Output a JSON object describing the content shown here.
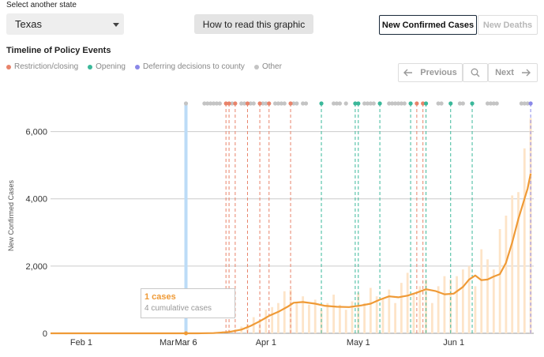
{
  "controls": {
    "state_label": "Select another state",
    "state_value": "Texas",
    "how_to_read": "How to read this graphic",
    "metric_cases": "New Confirmed Cases",
    "metric_deaths": "New Deaths"
  },
  "timeline": {
    "title": "Timeline of Policy Events",
    "legend": [
      {
        "label": "Restriction/closing",
        "color": "#e8836a"
      },
      {
        "label": "Opening",
        "color": "#3bb89a"
      },
      {
        "label": "Deferring decisions to county",
        "color": "#8a88e8"
      },
      {
        "label": "Other",
        "color": "#c4c4c4"
      }
    ],
    "previous_label": "Previous",
    "next_label": "Next"
  },
  "tooltip": {
    "cases": "1 cases",
    "cumulative": "4 cumulative cases"
  },
  "colors": {
    "line": "#ef9a36",
    "bar": "#fde4c8",
    "highlight": "#bcdcf7",
    "grid": "#cccccc"
  },
  "chart_data": {
    "type": "line",
    "ylabel": "New Confirmed Cases",
    "ylim": [
      0,
      7000
    ],
    "yticks": [
      0,
      2000,
      4000,
      6000
    ],
    "yticklabels": [
      "0",
      "2,000",
      "4,000",
      "6,000"
    ],
    "x_start": "2020-01-22",
    "x_end": "2020-06-27",
    "xticks": [
      {
        "date": "2020-02-01",
        "label": "Feb 1"
      },
      {
        "date": "2020-03-01",
        "label": "Mar 1"
      },
      {
        "date": "2020-04-01",
        "label": "Apr 1"
      },
      {
        "date": "2020-05-01",
        "label": "May 1"
      },
      {
        "date": "2020-06-01",
        "label": "Jun 1"
      }
    ],
    "highlight": {
      "date": "2020-03-06",
      "label": "Mar 6",
      "value": 1
    },
    "average_line": {
      "name": "7-day average",
      "points": [
        [
          "2020-01-22",
          0
        ],
        [
          "2020-03-10",
          0
        ],
        [
          "2020-03-15",
          8
        ],
        [
          "2020-03-20",
          40
        ],
        [
          "2020-03-24",
          110
        ],
        [
          "2020-03-27",
          220
        ],
        [
          "2020-03-30",
          360
        ],
        [
          "2020-04-02",
          520
        ],
        [
          "2020-04-05",
          640
        ],
        [
          "2020-04-08",
          790
        ],
        [
          "2020-04-10",
          910
        ],
        [
          "2020-04-13",
          930
        ],
        [
          "2020-04-17",
          880
        ],
        [
          "2020-04-20",
          820
        ],
        [
          "2020-04-24",
          790
        ],
        [
          "2020-04-28",
          780
        ],
        [
          "2020-05-02",
          830
        ],
        [
          "2020-05-05",
          880
        ],
        [
          "2020-05-08",
          1000
        ],
        [
          "2020-05-11",
          1100
        ],
        [
          "2020-05-14",
          1070
        ],
        [
          "2020-05-17",
          1120
        ],
        [
          "2020-05-20",
          1210
        ],
        [
          "2020-05-23",
          1310
        ],
        [
          "2020-05-26",
          1260
        ],
        [
          "2020-05-29",
          1160
        ],
        [
          "2020-06-01",
          1180
        ],
        [
          "2020-06-04",
          1380
        ],
        [
          "2020-06-06",
          1600
        ],
        [
          "2020-06-08",
          1720
        ],
        [
          "2020-06-10",
          1580
        ],
        [
          "2020-06-12",
          1600
        ],
        [
          "2020-06-14",
          1690
        ],
        [
          "2020-06-16",
          1760
        ],
        [
          "2020-06-18",
          2100
        ],
        [
          "2020-06-20",
          2700
        ],
        [
          "2020-06-22",
          3400
        ],
        [
          "2020-06-24",
          4000
        ],
        [
          "2020-06-25",
          4300
        ],
        [
          "2020-06-26",
          4750
        ]
      ]
    },
    "daily_bars": {
      "name": "Daily new cases",
      "points": [
        [
          "2020-03-12",
          10
        ],
        [
          "2020-03-14",
          20
        ],
        [
          "2020-03-16",
          30
        ],
        [
          "2020-03-18",
          60
        ],
        [
          "2020-03-20",
          110
        ],
        [
          "2020-03-22",
          120
        ],
        [
          "2020-03-24",
          200
        ],
        [
          "2020-03-26",
          280
        ],
        [
          "2020-03-28",
          480
        ],
        [
          "2020-03-30",
          400
        ],
        [
          "2020-04-01",
          700
        ],
        [
          "2020-04-03",
          780
        ],
        [
          "2020-04-05",
          900
        ],
        [
          "2020-04-07",
          1250
        ],
        [
          "2020-04-09",
          1300
        ],
        [
          "2020-04-11",
          900
        ],
        [
          "2020-04-13",
          1100
        ],
        [
          "2020-04-15",
          850
        ],
        [
          "2020-04-17",
          1000
        ],
        [
          "2020-04-19",
          700
        ],
        [
          "2020-04-21",
          900
        ],
        [
          "2020-04-23",
          1150
        ],
        [
          "2020-04-25",
          850
        ],
        [
          "2020-04-27",
          700
        ],
        [
          "2020-04-29",
          950
        ],
        [
          "2020-05-01",
          1200
        ],
        [
          "2020-05-03",
          900
        ],
        [
          "2020-05-05",
          1350
        ],
        [
          "2020-05-07",
          1100
        ],
        [
          "2020-05-09",
          1050
        ],
        [
          "2020-05-11",
          1300
        ],
        [
          "2020-05-13",
          900
        ],
        [
          "2020-05-15",
          1500
        ],
        [
          "2020-05-17",
          1800
        ],
        [
          "2020-05-19",
          1200
        ],
        [
          "2020-05-21",
          1400
        ],
        [
          "2020-05-23",
          1600
        ],
        [
          "2020-05-25",
          900
        ],
        [
          "2020-05-27",
          1400
        ],
        [
          "2020-05-29",
          1700
        ],
        [
          "2020-05-31",
          1600
        ],
        [
          "2020-06-02",
          1700
        ],
        [
          "2020-06-04",
          1900
        ],
        [
          "2020-06-06",
          2000
        ],
        [
          "2020-06-08",
          1400
        ],
        [
          "2020-06-10",
          2500
        ],
        [
          "2020-06-12",
          2200
        ],
        [
          "2020-06-14",
          1900
        ],
        [
          "2020-06-16",
          3100
        ],
        [
          "2020-06-18",
          3500
        ],
        [
          "2020-06-20",
          4100
        ],
        [
          "2020-06-22",
          4200
        ],
        [
          "2020-06-24",
          5500
        ],
        [
          "2020-06-26",
          6400
        ]
      ]
    },
    "events": [
      {
        "date": "2020-03-19",
        "kind": "restriction"
      },
      {
        "date": "2020-03-20",
        "kind": "restriction"
      },
      {
        "date": "2020-03-22",
        "kind": "restriction"
      },
      {
        "date": "2020-03-26",
        "kind": "restriction"
      },
      {
        "date": "2020-03-30",
        "kind": "restriction"
      },
      {
        "date": "2020-04-02",
        "kind": "restriction"
      },
      {
        "date": "2020-04-09",
        "kind": "restriction"
      },
      {
        "date": "2020-04-19",
        "kind": "opening"
      },
      {
        "date": "2020-04-30",
        "kind": "opening"
      },
      {
        "date": "2020-05-01",
        "kind": "opening"
      },
      {
        "date": "2020-05-08",
        "kind": "opening"
      },
      {
        "date": "2020-05-18",
        "kind": "opening"
      },
      {
        "date": "2020-05-20",
        "kind": "restriction"
      },
      {
        "date": "2020-05-22",
        "kind": "restriction"
      },
      {
        "date": "2020-05-23",
        "kind": "opening"
      },
      {
        "date": "2020-05-31",
        "kind": "opening"
      },
      {
        "date": "2020-06-07",
        "kind": "opening"
      },
      {
        "date": "2020-06-26",
        "kind": "deferring"
      }
    ],
    "other_events": [
      "2020-03-06",
      "2020-03-12",
      "2020-03-13",
      "2020-03-14",
      "2020-03-15",
      "2020-03-16",
      "2020-03-17",
      "2020-03-21",
      "2020-03-24",
      "2020-03-25",
      "2020-03-27",
      "2020-03-28",
      "2020-03-31",
      "2020-04-01",
      "2020-04-04",
      "2020-04-05",
      "2020-04-06",
      "2020-04-07",
      "2020-04-10",
      "2020-04-11",
      "2020-04-13",
      "2020-04-14",
      "2020-04-23",
      "2020-04-24",
      "2020-04-25",
      "2020-04-27",
      "2020-05-03",
      "2020-05-04",
      "2020-05-05",
      "2020-05-06",
      "2020-05-11",
      "2020-05-12",
      "2020-05-13",
      "2020-05-14",
      "2020-05-15",
      "2020-05-16",
      "2020-05-27",
      "2020-05-28",
      "2020-06-03",
      "2020-06-04",
      "2020-06-12",
      "2020-06-13",
      "2020-06-14",
      "2020-06-15",
      "2020-06-23",
      "2020-06-24",
      "2020-06-25"
    ]
  }
}
